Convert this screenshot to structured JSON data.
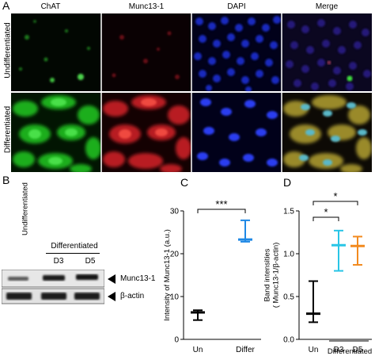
{
  "panel_a": {
    "label": "A",
    "columns": [
      "ChAT",
      "Munc13-1",
      "DAPI",
      "Merge"
    ],
    "rows": [
      "Undifferentiated",
      "Differentiated"
    ]
  },
  "panel_b": {
    "label": "B",
    "undiff_label": "Undifferentiated",
    "diff_label": "Differentiated",
    "lanes": [
      "D3",
      "D5"
    ],
    "bands": [
      "Munc13-1",
      "β-actin"
    ]
  },
  "chart_data": [
    {
      "panel": "C",
      "type": "box",
      "categories": [
        "Un",
        "Differ"
      ],
      "ylabel": "Intensity of Munc13-1 (a.u.)",
      "ylim": [
        0,
        30
      ],
      "yticks": [
        0,
        10,
        20,
        30
      ],
      "series": [
        {
          "category": "Un",
          "min": 4.5,
          "median": 6.3,
          "max": 6.8,
          "color": "#000000"
        },
        {
          "category": "Differ",
          "min": 22.8,
          "median": 23.3,
          "max": 27.8,
          "color": "#1e88e5"
        }
      ],
      "annotations": [
        {
          "between": [
            "Un",
            "Differ"
          ],
          "text": "***"
        }
      ]
    },
    {
      "panel": "D",
      "type": "box",
      "categories": [
        "Un",
        "D3",
        "D5"
      ],
      "group_label": "Differentiated",
      "ylabel": "Band intensities\n( Munc13-1/β-actin)",
      "ylim": [
        0,
        1.5
      ],
      "yticks": [
        0.0,
        0.5,
        1.0,
        1.5
      ],
      "series": [
        {
          "category": "Un",
          "min": 0.2,
          "median": 0.3,
          "max": 0.68,
          "color": "#000000"
        },
        {
          "category": "D3",
          "min": 0.8,
          "median": 1.1,
          "max": 1.27,
          "color": "#29c5e6"
        },
        {
          "category": "D5",
          "min": 0.87,
          "median": 1.09,
          "max": 1.2,
          "color": "#f28a1e"
        }
      ],
      "annotations": [
        {
          "between": [
            "Un",
            "D3"
          ],
          "text": "*"
        },
        {
          "between": [
            "Un",
            "D5"
          ],
          "text": "*"
        }
      ]
    }
  ],
  "labels": {
    "c": "C",
    "d": "D"
  }
}
